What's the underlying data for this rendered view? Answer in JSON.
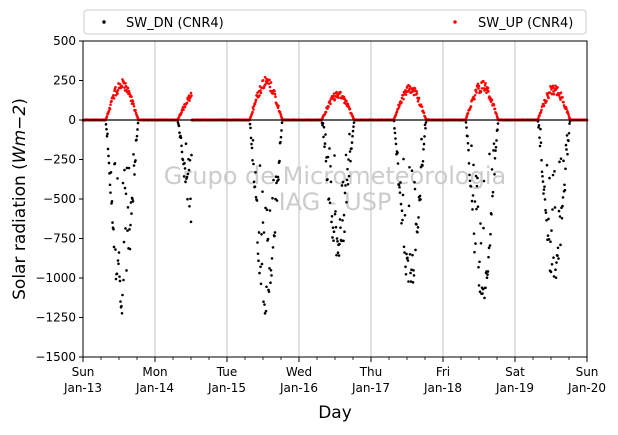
{
  "chart_data": {
    "type": "scatter",
    "xlabel": "Day",
    "ylabel": "Solar radiation (Wm−2)",
    "ylabel_parts": {
      "prefix": "Solar radiation (",
      "math": "Wm−2",
      "suffix": ")"
    },
    "ylim": [
      -1500,
      500
    ],
    "yticks": [
      500,
      250,
      0,
      -250,
      -500,
      -750,
      -1000,
      -1250,
      -1500
    ],
    "ytick_labels": [
      "500",
      "250",
      "0",
      "−250",
      "−500",
      "−750",
      "−1000",
      "−1250",
      "−1500"
    ],
    "xlim": [
      "2019-01-13",
      "2019-01-20"
    ],
    "xticks": [
      {
        "day": "Sun",
        "date": "Jan-13"
      },
      {
        "day": "Mon",
        "date": "Jan-14"
      },
      {
        "day": "Tue",
        "date": "Jan-15"
      },
      {
        "day": "Wed",
        "date": "Jan-16"
      },
      {
        "day": "Thu",
        "date": "Jan-17"
      },
      {
        "day": "Fri",
        "date": "Jan-18"
      },
      {
        "day": "Sat",
        "date": "Jan-19"
      },
      {
        "day": "Sun",
        "date": "Jan-20"
      }
    ],
    "grid": "vertical",
    "legend_position": "top, above plot",
    "watermark": [
      "Grupo de Micrometeorologia",
      "IAG - USP"
    ],
    "series": [
      {
        "name": "SW_DN (CNR4)",
        "color": "#000000",
        "marker": "dot",
        "days": [
          {
            "date": "2019-01-13",
            "start_hour": 7.5,
            "end_hour": 18.5,
            "peak": -1250
          },
          {
            "date": "2019-01-14",
            "start_hour": 7.5,
            "end_hour": 12.3,
            "peak": -720
          },
          {
            "date": "2019-01-15",
            "start_hour": 7.5,
            "end_hour": 18.5,
            "peak": -1300
          },
          {
            "date": "2019-01-16",
            "start_hour": 7.5,
            "end_hour": 18.5,
            "peak": -920
          },
          {
            "date": "2019-01-17",
            "start_hour": 7.5,
            "end_hour": 18.5,
            "peak": -1100
          },
          {
            "date": "2019-01-18",
            "start_hour": 7.5,
            "end_hour": 18.5,
            "peak": -1210
          },
          {
            "date": "2019-01-19",
            "start_hour": 7.5,
            "end_hour": 18.5,
            "peak": -1060
          }
        ]
      },
      {
        "name": "SW_UP (CNR4)",
        "color": "#ff0000",
        "marker": "dot",
        "days": [
          {
            "date": "2019-01-13",
            "start_hour": 7.5,
            "end_hour": 18.5,
            "peak": 260
          },
          {
            "date": "2019-01-14",
            "start_hour": 7.5,
            "end_hour": 12.3,
            "peak": 180
          },
          {
            "date": "2019-01-15",
            "start_hour": 7.5,
            "end_hour": 18.5,
            "peak": 275
          },
          {
            "date": "2019-01-16",
            "start_hour": 7.5,
            "end_hour": 18.5,
            "peak": 185
          },
          {
            "date": "2019-01-17",
            "start_hour": 7.5,
            "end_hour": 18.5,
            "peak": 230
          },
          {
            "date": "2019-01-18",
            "start_hour": 7.5,
            "end_hour": 18.5,
            "peak": 250
          },
          {
            "date": "2019-01-19",
            "start_hour": 7.5,
            "end_hour": 18.5,
            "peak": 230
          }
        ]
      }
    ]
  }
}
